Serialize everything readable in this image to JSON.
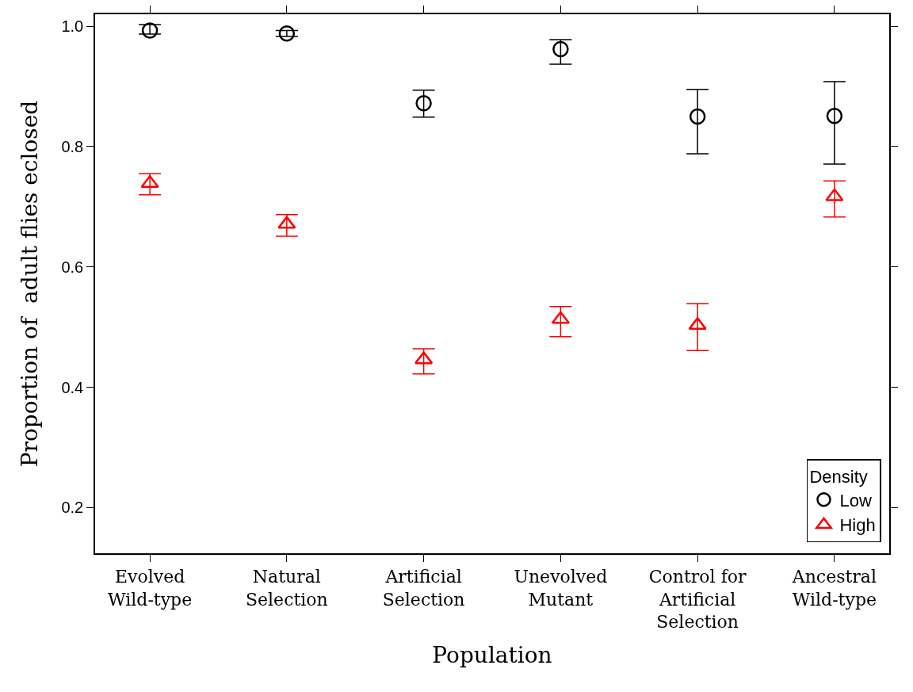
{
  "chart_data": {
    "type": "scatter",
    "xlabel": "Population",
    "ylabel": "Proportion of  adult flies eclosed",
    "legend_title": "Density",
    "legend": "bottom right",
    "grid": false,
    "categories": [
      "Evolved\nWild-type",
      "Natural\nSelection",
      "Artificial\nSelection",
      "Unevolved\nMutant",
      "Control for\nArtificial\nSelection",
      "Ancestral\nWild-type"
    ],
    "ylim": [
      0.124,
      1.02
    ],
    "yticks": [
      {
        "value": 0.2,
        "label": "0.2"
      },
      {
        "value": 0.4,
        "label": "0.4"
      },
      {
        "value": 0.6,
        "label": "0.6"
      },
      {
        "value": 0.8,
        "label": "0.8"
      },
      {
        "value": 1.0,
        "label": "1.0"
      }
    ],
    "series": [
      {
        "name": "Low",
        "color": "#000000",
        "marker": "circle",
        "values": [
          0.993,
          0.988,
          0.872,
          0.962,
          0.85,
          0.851
        ],
        "errors": [
          [
            0.987,
            1.003
          ],
          [
            0.983,
            0.993
          ],
          [
            0.849,
            0.894
          ],
          [
            0.937,
            0.978
          ],
          [
            0.788,
            0.895
          ],
          [
            0.771,
            0.908
          ]
        ]
      },
      {
        "name": "High",
        "color": "#ff0000",
        "marker": "triangle",
        "values": [
          0.739,
          0.671,
          0.446,
          0.513,
          0.503,
          0.717
        ],
        "errors": [
          [
            0.72,
            0.755
          ],
          [
            0.651,
            0.687
          ],
          [
            0.422,
            0.464
          ],
          [
            0.484,
            0.534
          ],
          [
            0.461,
            0.539
          ],
          [
            0.683,
            0.743
          ]
        ]
      }
    ]
  }
}
